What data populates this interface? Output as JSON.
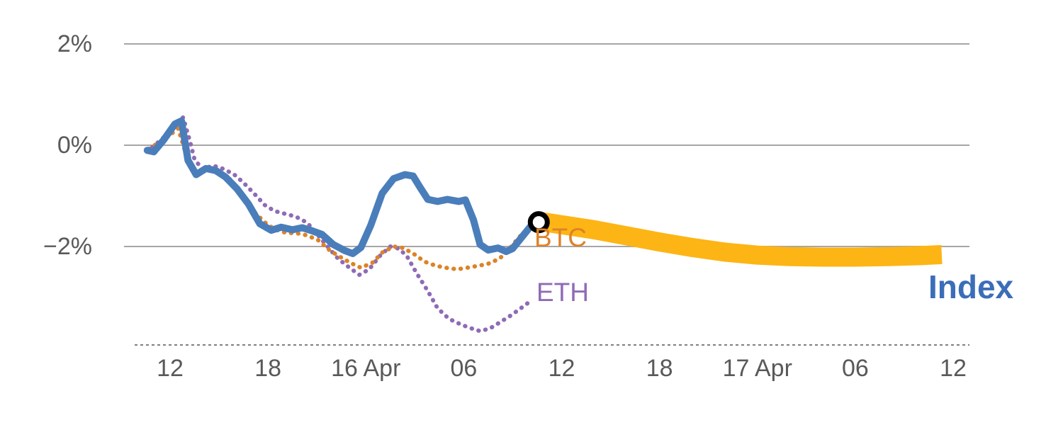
{
  "chart_data": {
    "type": "line",
    "title": "",
    "xlabel": "",
    "ylabel": "",
    "grid": "horizontal",
    "legend_position": "inline-labels",
    "colors": {
      "index": "#4a7ebb",
      "index_label": "#3b6db8",
      "btc": "#dd8327",
      "eth": "#8f6bb5",
      "projection": "#fdb515",
      "marker": "#000000",
      "grid": "#a6a6a6",
      "axis": "#7f7f7f",
      "axis_text": "#595959"
    },
    "y_axis": {
      "unit": "%",
      "range": [
        -4.2,
        2.6
      ],
      "ticks": [
        {
          "value": 2,
          "label": "2%"
        },
        {
          "value": 0,
          "label": "0%"
        },
        {
          "value": -2,
          "label": "−2%"
        }
      ]
    },
    "x_axis": {
      "unit": "hours",
      "range": [
        9.8,
        61.0
      ],
      "ticks": [
        {
          "pos": 12,
          "label": "12"
        },
        {
          "pos": 18,
          "label": "18"
        },
        {
          "pos": 24,
          "label": "16 Apr"
        },
        {
          "pos": 30,
          "label": "06"
        },
        {
          "pos": 36,
          "label": "12"
        },
        {
          "pos": 42,
          "label": "18"
        },
        {
          "pos": 48,
          "label": "17 Apr"
        },
        {
          "pos": 54,
          "label": "06"
        },
        {
          "pos": 60,
          "label": "12"
        }
      ]
    },
    "series": [
      {
        "name": "ETH",
        "style": "dotted",
        "color": "#8f6bb5",
        "width": 6,
        "points": [
          [
            10.9,
            -0.04
          ],
          [
            11.5,
            0.12
          ],
          [
            12.1,
            0.32
          ],
          [
            12.8,
            0.55
          ],
          [
            13.2,
            0.1
          ],
          [
            13.5,
            -0.28
          ],
          [
            14.0,
            -0.48
          ],
          [
            14.6,
            -0.4
          ],
          [
            15.2,
            -0.46
          ],
          [
            15.9,
            -0.57
          ],
          [
            16.5,
            -0.74
          ],
          [
            17.2,
            -0.97
          ],
          [
            17.8,
            -1.18
          ],
          [
            18.4,
            -1.3
          ],
          [
            19.1,
            -1.36
          ],
          [
            19.7,
            -1.41
          ],
          [
            20.4,
            -1.53
          ],
          [
            21.0,
            -1.75
          ],
          [
            21.7,
            -2.02
          ],
          [
            22.3,
            -2.24
          ],
          [
            23.0,
            -2.42
          ],
          [
            23.6,
            -2.56
          ],
          [
            24.2,
            -2.45
          ],
          [
            24.9,
            -2.17
          ],
          [
            25.5,
            -2.0
          ],
          [
            26.0,
            -2.04
          ],
          [
            26.5,
            -2.18
          ],
          [
            27.1,
            -2.52
          ],
          [
            27.8,
            -2.88
          ],
          [
            28.4,
            -3.22
          ],
          [
            29.1,
            -3.43
          ],
          [
            29.7,
            -3.52
          ],
          [
            30.3,
            -3.6
          ],
          [
            31.0,
            -3.67
          ],
          [
            31.6,
            -3.62
          ],
          [
            32.2,
            -3.5
          ],
          [
            32.9,
            -3.36
          ],
          [
            33.5,
            -3.22
          ],
          [
            34.0,
            -3.1
          ]
        ]
      },
      {
        "name": "BTC",
        "style": "dotted",
        "color": "#dd8327",
        "width": 6,
        "points": [
          [
            10.7,
            -0.07
          ],
          [
            11.3,
            0.05
          ],
          [
            11.9,
            0.18
          ],
          [
            12.5,
            0.33
          ],
          [
            12.9,
            -0.1
          ],
          [
            13.3,
            -0.4
          ],
          [
            13.8,
            -0.55
          ],
          [
            14.4,
            -0.45
          ],
          [
            15.0,
            -0.52
          ],
          [
            15.7,
            -0.68
          ],
          [
            16.4,
            -1.0
          ],
          [
            17.1,
            -1.3
          ],
          [
            17.8,
            -1.52
          ],
          [
            18.4,
            -1.66
          ],
          [
            19.1,
            -1.73
          ],
          [
            19.8,
            -1.74
          ],
          [
            20.4,
            -1.78
          ],
          [
            21.1,
            -1.88
          ],
          [
            21.8,
            -2.08
          ],
          [
            22.5,
            -2.22
          ],
          [
            23.1,
            -2.33
          ],
          [
            23.7,
            -2.42
          ],
          [
            24.4,
            -2.32
          ],
          [
            25.0,
            -2.12
          ],
          [
            25.7,
            -2.0
          ],
          [
            26.3,
            -2.03
          ],
          [
            27.0,
            -2.16
          ],
          [
            27.6,
            -2.3
          ],
          [
            28.3,
            -2.38
          ],
          [
            28.9,
            -2.42
          ],
          [
            29.6,
            -2.45
          ],
          [
            30.2,
            -2.42
          ],
          [
            30.9,
            -2.38
          ],
          [
            31.5,
            -2.34
          ],
          [
            32.2,
            -2.24
          ],
          [
            32.8,
            -2.04
          ],
          [
            33.5,
            -1.78
          ],
          [
            34.0,
            -1.62
          ]
        ]
      },
      {
        "name": "Index",
        "style": "solid",
        "color": "#4a7ebb",
        "width": 10,
        "points": [
          [
            10.6,
            -0.1
          ],
          [
            11.0,
            -0.13
          ],
          [
            11.6,
            0.1
          ],
          [
            12.3,
            0.42
          ],
          [
            12.7,
            0.48
          ],
          [
            13.1,
            -0.3
          ],
          [
            13.6,
            -0.58
          ],
          [
            14.2,
            -0.46
          ],
          [
            14.8,
            -0.5
          ],
          [
            15.4,
            -0.63
          ],
          [
            16.1,
            -0.86
          ],
          [
            16.8,
            -1.16
          ],
          [
            17.5,
            -1.55
          ],
          [
            18.2,
            -1.68
          ],
          [
            18.8,
            -1.62
          ],
          [
            19.5,
            -1.67
          ],
          [
            20.1,
            -1.63
          ],
          [
            20.7,
            -1.69
          ],
          [
            21.3,
            -1.76
          ],
          [
            22.0,
            -1.96
          ],
          [
            22.7,
            -2.08
          ],
          [
            23.2,
            -2.14
          ],
          [
            23.7,
            -2.02
          ],
          [
            24.3,
            -1.58
          ],
          [
            25.0,
            -0.95
          ],
          [
            25.7,
            -0.66
          ],
          [
            26.4,
            -0.58
          ],
          [
            26.9,
            -0.61
          ],
          [
            27.3,
            -0.82
          ],
          [
            27.8,
            -1.07
          ],
          [
            28.4,
            -1.11
          ],
          [
            29.0,
            -1.07
          ],
          [
            29.7,
            -1.11
          ],
          [
            30.1,
            -1.08
          ],
          [
            30.6,
            -1.48
          ],
          [
            31.0,
            -1.96
          ],
          [
            31.5,
            -2.07
          ],
          [
            32.1,
            -2.03
          ],
          [
            32.6,
            -2.1
          ],
          [
            33.0,
            -2.04
          ],
          [
            33.5,
            -1.84
          ],
          [
            34.1,
            -1.6
          ],
          [
            34.6,
            -1.52
          ]
        ]
      },
      {
        "name": "Index projection",
        "style": "band",
        "color": "#fdb515",
        "width": 27,
        "points": [
          [
            34.6,
            -1.5
          ],
          [
            36.0,
            -1.57
          ],
          [
            38.0,
            -1.67
          ],
          [
            40.0,
            -1.79
          ],
          [
            42.0,
            -1.91
          ],
          [
            44.0,
            -2.02
          ],
          [
            46.0,
            -2.11
          ],
          [
            48.0,
            -2.17
          ],
          [
            50.0,
            -2.2
          ],
          [
            52.0,
            -2.21
          ],
          [
            54.0,
            -2.21
          ],
          [
            56.0,
            -2.2
          ],
          [
            58.0,
            -2.18
          ],
          [
            59.3,
            -2.16
          ]
        ]
      }
    ],
    "annotations": {
      "marker": {
        "type": "open-circle",
        "x": 34.6,
        "y": -1.52,
        "color": "#000000"
      },
      "series_labels": [
        {
          "text": "BTC",
          "color": "#dd8327"
        },
        {
          "text": "ETH",
          "color": "#8f6bb5"
        },
        {
          "text": "Index",
          "color": "#3b6db8"
        }
      ]
    }
  }
}
